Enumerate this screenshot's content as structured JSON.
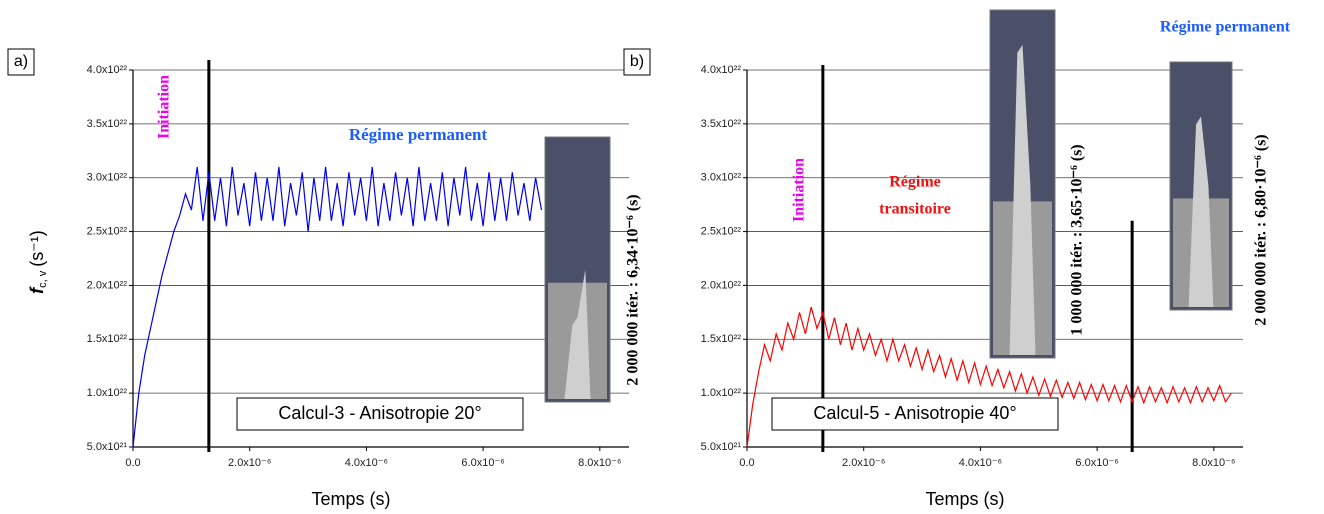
{
  "chart_data": [
    {
      "type": "line",
      "panel_label": "a)",
      "color": "#0000ee",
      "xlabel": "Temps (s)",
      "ylabel": {
        "symbol": "f",
        "subscript": "c, v",
        "unit": "(s⁻¹)"
      },
      "xlim": [
        0,
        8.5e-06
      ],
      "ylim": [
        5e+21,
        4e+22
      ],
      "grid": "y",
      "xticks": [
        {
          "value": 0,
          "label": "0.0"
        },
        {
          "value": 2e-06,
          "label": "2.0x10⁻⁶"
        },
        {
          "value": 4e-06,
          "label": "4.0x10⁻⁶"
        },
        {
          "value": 6e-06,
          "label": "6.0x10⁻⁶"
        },
        {
          "value": 8e-06,
          "label": "8.0x10⁻⁶"
        }
      ],
      "yticks": [
        {
          "value": 5e+21,
          "label": "5.0x10²¹"
        },
        {
          "value": 1e+22,
          "label": "1.0x10²²"
        },
        {
          "value": 1.5e+22,
          "label": "1.5x10²²"
        },
        {
          "value": 2e+22,
          "label": "2.0x10²²"
        },
        {
          "value": 2.5e+22,
          "label": "2.5x10²²"
        },
        {
          "value": 3e+22,
          "label": "3.0x10²²"
        },
        {
          "value": 3.5e+22,
          "label": "3.5x10²²"
        },
        {
          "value": 4e+22,
          "label": "4.0x10²²"
        }
      ],
      "x": [
        0,
        1e-07,
        2e-07,
        3e-07,
        4e-07,
        5e-07,
        6e-07,
        7e-07,
        8e-07,
        9e-07,
        1e-06,
        1.1e-06,
        1.2e-06,
        1.3e-06,
        1.4e-06,
        1.5e-06,
        1.6e-06,
        1.7e-06,
        1.8e-06,
        1.9e-06,
        2e-06,
        2.1e-06,
        2.2e-06,
        2.3e-06,
        2.4e-06,
        2.5e-06,
        2.6e-06,
        2.7e-06,
        2.8e-06,
        2.9e-06,
        3e-06,
        3.1e-06,
        3.2e-06,
        3.3e-06,
        3.4e-06,
        3.5e-06,
        3.6e-06,
        3.7e-06,
        3.8e-06,
        3.9e-06,
        4e-06,
        4.1e-06,
        4.2e-06,
        4.3e-06,
        4.4e-06,
        4.5e-06,
        4.6e-06,
        4.7e-06,
        4.8e-06,
        4.9e-06,
        5e-06,
        5.1e-06,
        5.2e-06,
        5.3e-06,
        5.4e-06,
        5.5e-06,
        5.6e-06,
        5.7e-06,
        5.8e-06,
        5.9e-06,
        6e-06,
        6.1e-06,
        6.2e-06,
        6.3e-06,
        6.4e-06,
        6.5e-06,
        6.6e-06,
        6.7e-06,
        6.8e-06,
        6.9e-06,
        7e-06
      ],
      "values": [
        5e+21,
        1e+22,
        1.35e+22,
        1.6e+22,
        1.85e+22,
        2.1e+22,
        2.3e+22,
        2.5e+22,
        2.65e+22,
        2.85e+22,
        2.7e+22,
        3.1e+22,
        2.6e+22,
        3.05e+22,
        2.6e+22,
        3e+22,
        2.55e+22,
        3.1e+22,
        2.65e+22,
        2.95e+22,
        2.55e+22,
        3.05e+22,
        2.6e+22,
        3e+22,
        2.6e+22,
        3.1e+22,
        2.55e+22,
        2.95e+22,
        2.65e+22,
        3.05e+22,
        2.5e+22,
        3e+22,
        2.6e+22,
        3.1e+22,
        2.6e+22,
        2.95e+22,
        2.55e+22,
        3.05e+22,
        2.65e+22,
        3e+22,
        2.6e+22,
        3.1e+22,
        2.55e+22,
        2.95e+22,
        2.6e+22,
        3.05e+22,
        2.65e+22,
        3e+22,
        2.55e+22,
        3.1e+22,
        2.6e+22,
        2.95e+22,
        2.6e+22,
        3.05e+22,
        2.55e+22,
        3e+22,
        2.65e+22,
        3.1e+22,
        2.6e+22,
        2.95e+22,
        2.55e+22,
        3.05e+22,
        2.6e+22,
        3e+22,
        2.6e+22,
        3.05e+22,
        2.65e+22,
        2.95e+22,
        2.6e+22,
        3e+22,
        2.7e+22
      ],
      "vlines": [
        {
          "x": 1.3e-06
        }
      ],
      "annotations": [
        {
          "text": "Initiation",
          "color": "#ee00ee"
        },
        {
          "text": "Régime permanent",
          "color": "#1a5cff"
        },
        {
          "text": "Calcul-3 - Anisotropie 20°",
          "color": "#000000"
        },
        {
          "text": "2 000 000 itér. : 6,34·10⁻⁶ (s)",
          "color": "#000000"
        }
      ]
    },
    {
      "type": "line",
      "panel_label": "b)",
      "color": "#ff0000",
      "xlabel": "Temps (s)",
      "xlim": [
        0,
        8.5e-06
      ],
      "ylim": [
        5e+21,
        4e+22
      ],
      "grid": "y",
      "xticks": [
        {
          "value": 0,
          "label": "0.0"
        },
        {
          "value": 2e-06,
          "label": "2.0x10⁻⁶"
        },
        {
          "value": 4e-06,
          "label": "4.0x10⁻⁶"
        },
        {
          "value": 6e-06,
          "label": "6.0x10⁻⁶"
        },
        {
          "value": 8e-06,
          "label": "8.0x10⁻⁶"
        }
      ],
      "yticks": [
        {
          "value": 5e+21,
          "label": "5.0x10²¹"
        },
        {
          "value": 1e+22,
          "label": "1.0x10²²"
        },
        {
          "value": 1.5e+22,
          "label": "1.5x10²²"
        },
        {
          "value": 2e+22,
          "label": "2.0x10²²"
        },
        {
          "value": 2.5e+22,
          "label": "2.5x10²²"
        },
        {
          "value": 3e+22,
          "label": "3.0x10²²"
        },
        {
          "value": 3.5e+22,
          "label": "3.5x10²²"
        },
        {
          "value": 4e+22,
          "label": "4.0x10²²"
        }
      ],
      "x": [
        0,
        1e-07,
        2e-07,
        3e-07,
        4e-07,
        5e-07,
        6e-07,
        7e-07,
        8e-07,
        9e-07,
        1e-06,
        1.1e-06,
        1.2e-06,
        1.3e-06,
        1.4e-06,
        1.5e-06,
        1.6e-06,
        1.7e-06,
        1.8e-06,
        1.9e-06,
        2e-06,
        2.1e-06,
        2.2e-06,
        2.3e-06,
        2.4e-06,
        2.5e-06,
        2.6e-06,
        2.7e-06,
        2.8e-06,
        2.9e-06,
        3e-06,
        3.1e-06,
        3.2e-06,
        3.3e-06,
        3.4e-06,
        3.5e-06,
        3.6e-06,
        3.7e-06,
        3.8e-06,
        3.9e-06,
        4e-06,
        4.1e-06,
        4.2e-06,
        4.3e-06,
        4.4e-06,
        4.5e-06,
        4.6e-06,
        4.7e-06,
        4.8e-06,
        4.9e-06,
        5e-06,
        5.1e-06,
        5.2e-06,
        5.3e-06,
        5.4e-06,
        5.5e-06,
        5.6e-06,
        5.7e-06,
        5.8e-06,
        5.9e-06,
        6e-06,
        6.1e-06,
        6.2e-06,
        6.3e-06,
        6.4e-06,
        6.5e-06,
        6.6e-06,
        6.7e-06,
        6.8e-06,
        6.9e-06,
        7e-06,
        7.1e-06,
        7.2e-06,
        7.3e-06,
        7.4e-06,
        7.5e-06,
        7.6e-06,
        7.7e-06,
        7.8e-06,
        7.9e-06,
        8e-06,
        8.1e-06,
        8.2e-06,
        8.3e-06
      ],
      "values": [
        5e+21,
        9e+21,
        1.2e+22,
        1.45e+22,
        1.3e+22,
        1.55e+22,
        1.4e+22,
        1.65e+22,
        1.5e+22,
        1.75e+22,
        1.55e+22,
        1.8e+22,
        1.6e+22,
        1.75e+22,
        1.5e+22,
        1.7e+22,
        1.45e+22,
        1.65e+22,
        1.4e+22,
        1.6e+22,
        1.4e+22,
        1.55e+22,
        1.35e+22,
        1.5e+22,
        1.3e+22,
        1.5e+22,
        1.3e+22,
        1.45e+22,
        1.25e+22,
        1.42e+22,
        1.22e+22,
        1.4e+22,
        1.2e+22,
        1.35e+22,
        1.15e+22,
        1.32e+22,
        1.12e+22,
        1.3e+22,
        1.1e+22,
        1.28e+22,
        1.08e+22,
        1.25e+22,
        1.07e+22,
        1.22e+22,
        1.05e+22,
        1.2e+22,
        1.02e+22,
        1.18e+22,
        1e+22,
        1.15e+22,
        9.8e+21,
        1.13e+22,
        9.7e+21,
        1.12e+22,
        9.6e+21,
        1.1e+22,
        9.5e+21,
        1.1e+22,
        9.4e+21,
        1.08e+22,
        9.3e+21,
        1.08e+22,
        9.3e+21,
        1.07e+22,
        9.2e+21,
        1.07e+22,
        9.2e+21,
        1.06e+22,
        9.1e+21,
        1.06e+22,
        9.2e+21,
        1.05e+22,
        9.1e+21,
        1.06e+22,
        9.2e+21,
        1.05e+22,
        9.1e+21,
        1.06e+22,
        9.2e+21,
        1.05e+22,
        9.3e+21,
        1.07e+22,
        9.2e+21,
        1e+22
      ],
      "vlines": [
        {
          "x": 1.3e-06
        },
        {
          "x": 6.6e-06,
          "ymax": 2.6e+22
        }
      ],
      "annotations": [
        {
          "text": "Initiation",
          "color": "#ee00ee"
        },
        {
          "text": "Régime",
          "color": "#ee1111"
        },
        {
          "text": "transitoire",
          "color": "#ee1111"
        },
        {
          "text": "Calcul-5 - Anisotropie 40°",
          "color": "#000000"
        },
        {
          "text": "1 000 000 itér. : 3,65·10⁻⁶ (s)",
          "color": "#000000"
        },
        {
          "text": "2 000 000 itér. : 6,80·10⁻⁶ (s)",
          "color": "#000000"
        },
        {
          "text": "Régime permanent",
          "color": "#1a5cff"
        }
      ]
    }
  ]
}
